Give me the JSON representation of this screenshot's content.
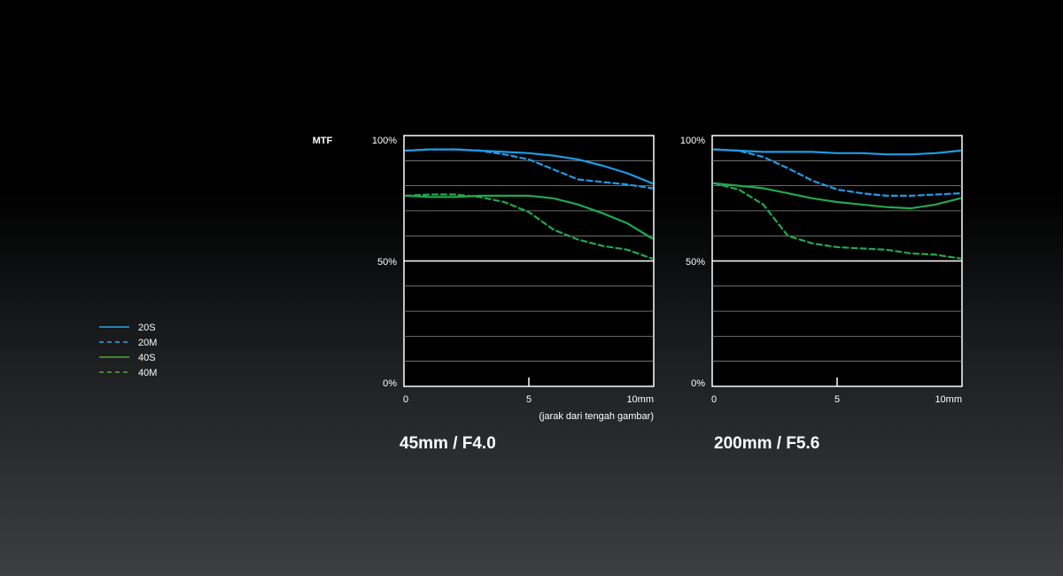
{
  "mtf_label": "MTF",
  "colors": {
    "blue": "#1e9be6",
    "green": "#22a851",
    "legend_green": "#4cae2f",
    "legend_blue": "#2aa7e8"
  },
  "legend": [
    {
      "label": "20S",
      "color": "#2aa7e8",
      "dashed": false
    },
    {
      "label": "20M",
      "color": "#2aa7e8",
      "dashed": true
    },
    {
      "label": "40S",
      "color": "#4cae2f",
      "dashed": false
    },
    {
      "label": "40M",
      "color": "#4cae2f",
      "dashed": true
    }
  ],
  "chart_data": [
    {
      "type": "line",
      "title": "45mm / F4.0",
      "ylabel": "MTF",
      "xlabel": "(jarak dari tengah gambar)",
      "xlim": [
        0,
        10
      ],
      "ylim": [
        0,
        100
      ],
      "xticks": [
        "0",
        "5",
        "10mm"
      ],
      "yticks": [
        "0%",
        "50%",
        "100%"
      ],
      "series": [
        {
          "name": "20S",
          "color": "#1e9be6",
          "dashed": false,
          "x": [
            0,
            1,
            2,
            3,
            4,
            5,
            6,
            7,
            8,
            9,
            10
          ],
          "y": [
            94,
            94.5,
            94.5,
            94,
            93.5,
            93,
            92,
            90.5,
            88,
            85,
            81
          ]
        },
        {
          "name": "20M",
          "color": "#1e9be6",
          "dashed": true,
          "x": [
            0,
            1,
            2,
            3,
            4,
            5,
            6,
            7,
            8,
            9,
            10
          ],
          "y": [
            94,
            94.5,
            94.5,
            94,
            92.5,
            90.5,
            86.5,
            82.5,
            81.5,
            80.5,
            79
          ]
        },
        {
          "name": "40S",
          "color": "#22a851",
          "dashed": false,
          "x": [
            0,
            1,
            2,
            3,
            4,
            5,
            6,
            7,
            8,
            9,
            10
          ],
          "y": [
            76,
            75.5,
            75.5,
            76,
            76,
            76,
            75,
            72.5,
            69,
            65,
            59
          ]
        },
        {
          "name": "40M",
          "color": "#22a851",
          "dashed": true,
          "x": [
            0,
            1,
            2,
            3,
            4,
            5,
            6,
            7,
            8,
            9,
            10
          ],
          "y": [
            76,
            76.5,
            76.5,
            75.5,
            73.5,
            69.5,
            62.5,
            58.5,
            56,
            54.5,
            51
          ]
        }
      ]
    },
    {
      "type": "line",
      "title": "200mm / F5.6",
      "ylabel": "",
      "xlabel": "",
      "xlim": [
        0,
        10
      ],
      "ylim": [
        0,
        100
      ],
      "xticks": [
        "0",
        "5",
        "10mm"
      ],
      "yticks": [
        "0%",
        "50%",
        "100%"
      ],
      "series": [
        {
          "name": "20S",
          "color": "#1e9be6",
          "dashed": false,
          "x": [
            0,
            1,
            2,
            3,
            4,
            5,
            6,
            7,
            8,
            9,
            10
          ],
          "y": [
            94.5,
            94,
            93.5,
            93.5,
            93.5,
            93,
            93,
            92.5,
            92.5,
            93,
            94
          ]
        },
        {
          "name": "20M",
          "color": "#1e9be6",
          "dashed": true,
          "x": [
            0,
            1,
            2,
            3,
            4,
            5,
            6,
            7,
            8,
            9,
            10
          ],
          "y": [
            94.5,
            94,
            91.5,
            87,
            82,
            78.5,
            77,
            76,
            76,
            76.5,
            77
          ]
        },
        {
          "name": "40S",
          "color": "#22a851",
          "dashed": false,
          "x": [
            0,
            1,
            2,
            3,
            4,
            5,
            6,
            7,
            8,
            9,
            10
          ],
          "y": [
            81,
            80,
            79,
            77,
            75,
            73.5,
            72.5,
            71.5,
            71,
            72.5,
            75
          ]
        },
        {
          "name": "40M",
          "color": "#22a851",
          "dashed": true,
          "x": [
            0,
            1,
            2,
            3,
            4,
            5,
            6,
            7,
            8,
            9,
            10
          ],
          "y": [
            81,
            78.5,
            72.5,
            60,
            57,
            55.5,
            55,
            54.5,
            53,
            52.5,
            51
          ]
        }
      ]
    }
  ]
}
